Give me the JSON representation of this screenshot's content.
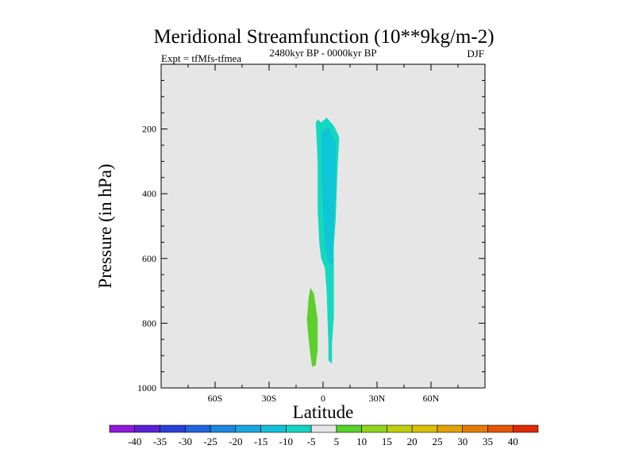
{
  "chart_data": {
    "type": "contour",
    "title": "Meridional Streamfunction (10**9kg/m-2)",
    "subtitle_left": "Expt = tfMfs-tfmea",
    "subtitle_center": "2480kyr BP - 0000kyr BP",
    "subtitle_right": "DJF",
    "xlabel": "Latitude",
    "ylabel": "Pressure (in hPa)",
    "xlim": [
      -90,
      90
    ],
    "ylim": [
      1000,
      0
    ],
    "x_ticks": [
      {
        "value": -60,
        "label": "60S"
      },
      {
        "value": -30,
        "label": "30S"
      },
      {
        "value": 0,
        "label": "0"
      },
      {
        "value": 30,
        "label": "30N"
      },
      {
        "value": 60,
        "label": "60N"
      }
    ],
    "y_ticks": [
      {
        "value": 200,
        "label": "200"
      },
      {
        "value": 400,
        "label": "400"
      },
      {
        "value": 600,
        "label": "600"
      },
      {
        "value": 800,
        "label": "800"
      },
      {
        "value": 1000,
        "label": "1000"
      }
    ],
    "regions": [
      {
        "name": "negative-cell",
        "level": -5,
        "color": "#14d8c0",
        "polygon": [
          [
            -3,
            170
          ],
          [
            -1,
            180
          ],
          [
            2,
            165
          ],
          [
            6,
            190
          ],
          [
            9,
            225
          ],
          [
            8,
            330
          ],
          [
            7,
            480
          ],
          [
            6,
            560
          ],
          [
            6,
            780
          ],
          [
            5,
            860
          ],
          [
            5,
            900
          ],
          [
            5,
            925
          ],
          [
            3,
            915
          ],
          [
            3,
            870
          ],
          [
            2,
            700
          ],
          [
            1,
            630
          ],
          [
            -1,
            600
          ],
          [
            -2,
            560
          ],
          [
            -3,
            450
          ],
          [
            -3,
            300
          ],
          [
            -4,
            180
          ]
        ]
      },
      {
        "name": "negative-core",
        "level": -10,
        "color": "#0ec6d6",
        "polygon": [
          [
            -1,
            210
          ],
          [
            3,
            195
          ],
          [
            7,
            240
          ],
          [
            7,
            380
          ],
          [
            6,
            500
          ],
          [
            5,
            620
          ],
          [
            3,
            610
          ],
          [
            1,
            560
          ],
          [
            0,
            450
          ],
          [
            -1,
            330
          ]
        ]
      },
      {
        "name": "positive-cell",
        "level": 5,
        "color": "#5dcf2c",
        "polygon": [
          [
            -7,
            690
          ],
          [
            -5,
            710
          ],
          [
            -3,
            790
          ],
          [
            -3,
            880
          ],
          [
            -4,
            930
          ],
          [
            -6,
            935
          ],
          [
            -7,
            900
          ],
          [
            -8,
            850
          ],
          [
            -9,
            790
          ],
          [
            -8,
            720
          ]
        ]
      }
    ],
    "colorbar": {
      "labels": [
        "-40",
        "-35",
        "-30",
        "-25",
        "-20",
        "-15",
        "-10",
        "-5",
        "5",
        "10",
        "15",
        "20",
        "25",
        "30",
        "35",
        "40"
      ],
      "colors": [
        "#8e1ad8",
        "#5a20d6",
        "#2a3fd8",
        "#1f64dc",
        "#1b86de",
        "#1aa6e0",
        "#14c2d8",
        "#12d6c2",
        "#e6e6e6",
        "#56d22a",
        "#92d41a",
        "#bed00c",
        "#d9c006",
        "#e1a006",
        "#e57c06",
        "#e45606",
        "#df2a02"
      ]
    }
  }
}
